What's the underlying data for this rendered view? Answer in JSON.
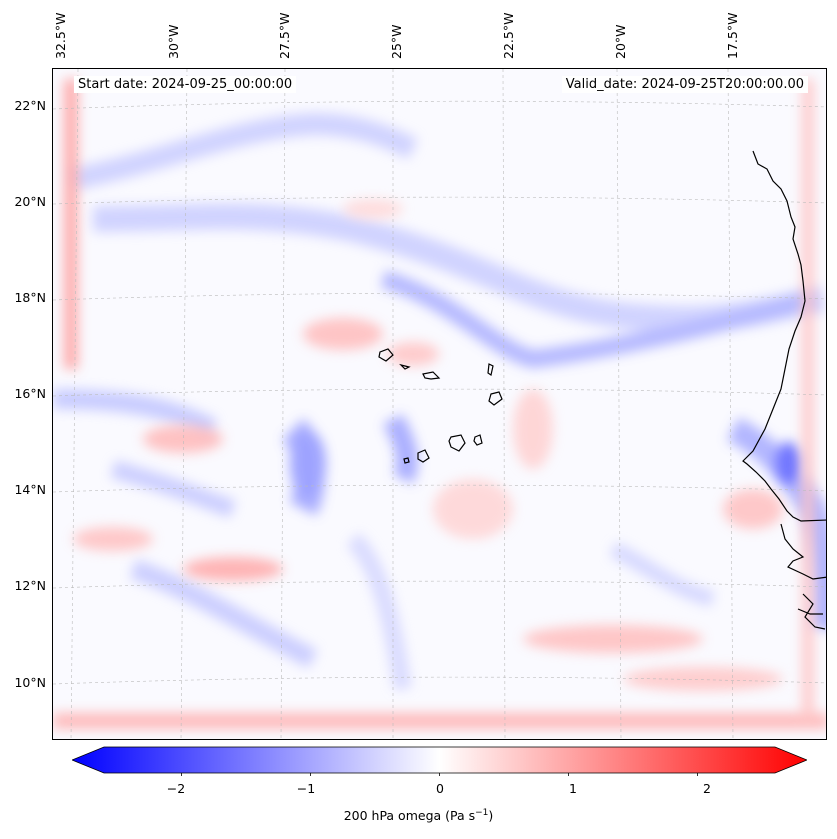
{
  "header": {
    "start_date": "Start date: 2024-09-25_00:00:00",
    "valid_date": "Valid_date: 2024-09-25T20:00:00.00"
  },
  "lon_ticks": [
    "32.5°W",
    "30°W",
    "27.5°W",
    "25°W",
    "22.5°W",
    "20°W",
    "17.5°W"
  ],
  "lat_ticks": [
    "22°N",
    "20°N",
    "18°N",
    "16°N",
    "14°N",
    "12°N",
    "10°N"
  ],
  "colorbar": {
    "label_main": "200 hPa omega (Pa s",
    "label_sup": "−1",
    "label_end": ")",
    "ticks": [
      "−2",
      "−1",
      "0",
      "1",
      "2"
    ],
    "vmin": -2.6,
    "vmax": 2.6,
    "negative_color": "#0000ff",
    "positive_color": "#ff0000"
  },
  "map": {
    "coastline_color": "#000000",
    "gridline_color": "#bbbbbb"
  }
}
